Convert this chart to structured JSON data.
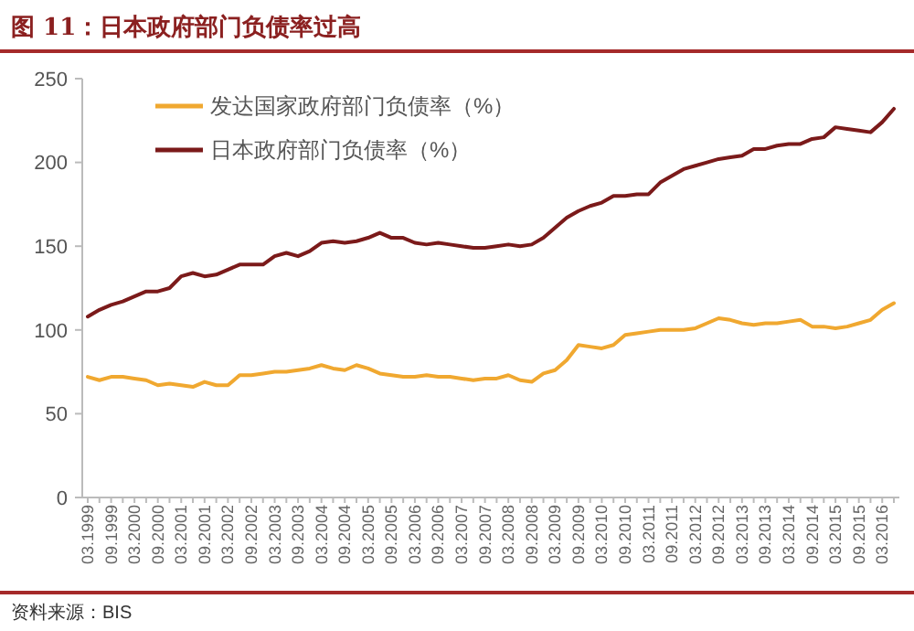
{
  "chart_data": {
    "type": "line",
    "title": "图 11：日本政府部门负债率过高",
    "categories": [
      "03.1999",
      null,
      "09.1999",
      null,
      "03.2000",
      null,
      "09.2000",
      null,
      "03.2001",
      null,
      "09.2001",
      null,
      "03.2002",
      null,
      "09.2002",
      null,
      "03.2003",
      null,
      "09.2003",
      null,
      "03.2004",
      null,
      "09.2004",
      null,
      "03.2005",
      null,
      "09.2005",
      null,
      "03.2006",
      null,
      "09.2006",
      null,
      "03.2007",
      null,
      "09.2007",
      null,
      "03.2008",
      null,
      "09.2008",
      null,
      "03.2009",
      null,
      "09.2009",
      null,
      "03.2010",
      null,
      "09.2010",
      null,
      "03.2011",
      null,
      "09.2011",
      null,
      "03.2012",
      null,
      "09.2012",
      null,
      "03.2013",
      null,
      "09.2013",
      null,
      "03.2014",
      null,
      "09.2014",
      null,
      "03.2015",
      null,
      "09.2015",
      null,
      "03.2016",
      null
    ],
    "series": [
      {
        "name": "发达国家政府部门负债率（%）",
        "color": "#f0a830",
        "values": [
          72,
          70,
          72,
          72,
          71,
          70,
          67,
          68,
          67,
          66,
          69,
          67,
          67,
          73,
          73,
          74,
          75,
          75,
          76,
          77,
          79,
          77,
          76,
          79,
          77,
          74,
          73,
          72,
          72,
          73,
          72,
          72,
          71,
          70,
          71,
          71,
          73,
          70,
          69,
          74,
          76,
          82,
          91,
          90,
          89,
          91,
          97,
          98,
          99,
          100,
          100,
          100,
          101,
          104,
          107,
          106,
          104,
          103,
          104,
          104,
          105,
          106,
          102,
          102,
          101,
          102,
          104,
          106,
          112,
          116
        ]
      },
      {
        "name": "日本政府部门负债率（%）",
        "color": "#7b1a1a",
        "values": [
          108,
          112,
          115,
          117,
          120,
          123,
          123,
          125,
          132,
          134,
          132,
          133,
          136,
          139,
          139,
          139,
          144,
          146,
          144,
          147,
          152,
          153,
          152,
          153,
          155,
          158,
          155,
          155,
          152,
          151,
          152,
          151,
          150,
          149,
          149,
          150,
          151,
          150,
          151,
          155,
          161,
          167,
          171,
          174,
          176,
          180,
          180,
          181,
          181,
          188,
          192,
          196,
          198,
          200,
          202,
          203,
          204,
          208,
          208,
          210,
          211,
          211,
          214,
          215,
          221,
          220,
          219,
          218,
          224,
          232
        ]
      }
    ],
    "ylim": [
      0,
      250
    ],
    "yticks": [
      0,
      50,
      100,
      150,
      200,
      250
    ],
    "grid": false,
    "legend": "top left",
    "marker": "none",
    "line_style": "solid",
    "annotations": [
      "资料来源：BIS"
    ]
  }
}
